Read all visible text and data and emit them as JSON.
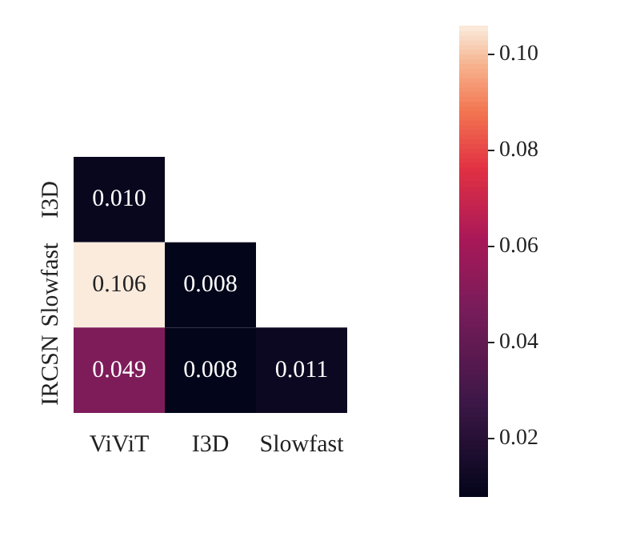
{
  "chart_data": {
    "type": "heatmap",
    "categories": [
      "ViViT",
      "I3D",
      "Slowfast"
    ],
    "y_categories": [
      "I3D",
      "Slowfast",
      "IRCSN"
    ],
    "cells": [
      [
        0.01,
        null,
        null
      ],
      [
        0.106,
        0.008,
        null
      ],
      [
        0.049,
        0.008,
        0.011
      ]
    ],
    "cell_labels": [
      [
        "0.010",
        null,
        null
      ],
      [
        "0.106",
        "0.008",
        null
      ],
      [
        "0.049",
        "0.008",
        "0.011"
      ]
    ],
    "clim": [
      0.008,
      0.106
    ],
    "cticks": [
      0.02,
      0.04,
      0.06,
      0.08,
      {
        "value": 0.1,
        "label": "0.10"
      }
    ]
  }
}
